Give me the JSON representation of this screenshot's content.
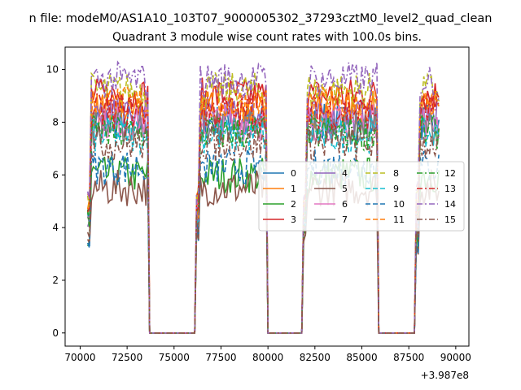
{
  "figure": {
    "suptitle": "n file: modeM0/AS1A10_103T07_9000005302_37293cztM0_level2_quad_clean",
    "title": "Quadrant 3 module wise count rates with 100.0s bins.",
    "offset_label": "+3.987e8"
  },
  "chart_data": {
    "type": "line",
    "title": "Quadrant 3 module wise count rates with 100.0s bins.",
    "xlabel": "",
    "ylabel": "",
    "x_offset": 398700000,
    "xlim": [
      69200,
      90700
    ],
    "ylim": [
      -0.5,
      10.85
    ],
    "xticks": [
      70000,
      72500,
      75000,
      77500,
      80000,
      82500,
      85000,
      87500,
      90000
    ],
    "xtick_labels": [
      "70000",
      "72500",
      "75000",
      "77500",
      "80000",
      "82500",
      "85000",
      "87500",
      "90000"
    ],
    "yticks": [
      0,
      2,
      4,
      6,
      8,
      10
    ],
    "ytick_labels": [
      "0",
      "2",
      "4",
      "6",
      "8",
      "10"
    ],
    "grid": false,
    "legend_position": "center-right",
    "legend_columns": 4,
    "active_segments": [
      [
        70400,
        73600
      ],
      [
        76200,
        79900
      ],
      [
        81900,
        85800
      ],
      [
        87900,
        89100
      ]
    ],
    "bin_seconds": 100.0,
    "series": [
      {
        "name": "0",
        "color": "#1f77b4",
        "dash": "solid",
        "level": 8.0
      },
      {
        "name": "1",
        "color": "#ff7f0e",
        "dash": "solid",
        "level": 8.5
      },
      {
        "name": "2",
        "color": "#2ca02c",
        "dash": "solid",
        "level": 6.0
      },
      {
        "name": "3",
        "color": "#d62728",
        "dash": "solid",
        "level": 9.0
      },
      {
        "name": "4",
        "color": "#9467bd",
        "dash": "solid",
        "level": 8.2
      },
      {
        "name": "5",
        "color": "#8c564b",
        "dash": "solid",
        "level": 5.5
      },
      {
        "name": "6",
        "color": "#e377c2",
        "dash": "solid",
        "level": 8.0
      },
      {
        "name": "7",
        "color": "#7f7f7f",
        "dash": "solid",
        "level": 7.8
      },
      {
        "name": "8",
        "color": "#bcbd22",
        "dash": "dashed",
        "level": 9.2
      },
      {
        "name": "9",
        "color": "#17becf",
        "dash": "dashed",
        "level": 7.5
      },
      {
        "name": "10",
        "color": "#1f77b4",
        "dash": "dashed",
        "level": 6.3
      },
      {
        "name": "11",
        "color": "#ff7f0e",
        "dash": "dashed",
        "level": 8.7
      },
      {
        "name": "12",
        "color": "#2ca02c",
        "dash": "dashdot",
        "level": 7.6
      },
      {
        "name": "13",
        "color": "#d62728",
        "dash": "dashdot",
        "level": 8.4
      },
      {
        "name": "14",
        "color": "#9467bd",
        "dash": "dashdot",
        "level": 9.6
      },
      {
        "name": "15",
        "color": "#8c564b",
        "dash": "dashdot",
        "level": 7.2
      }
    ]
  }
}
